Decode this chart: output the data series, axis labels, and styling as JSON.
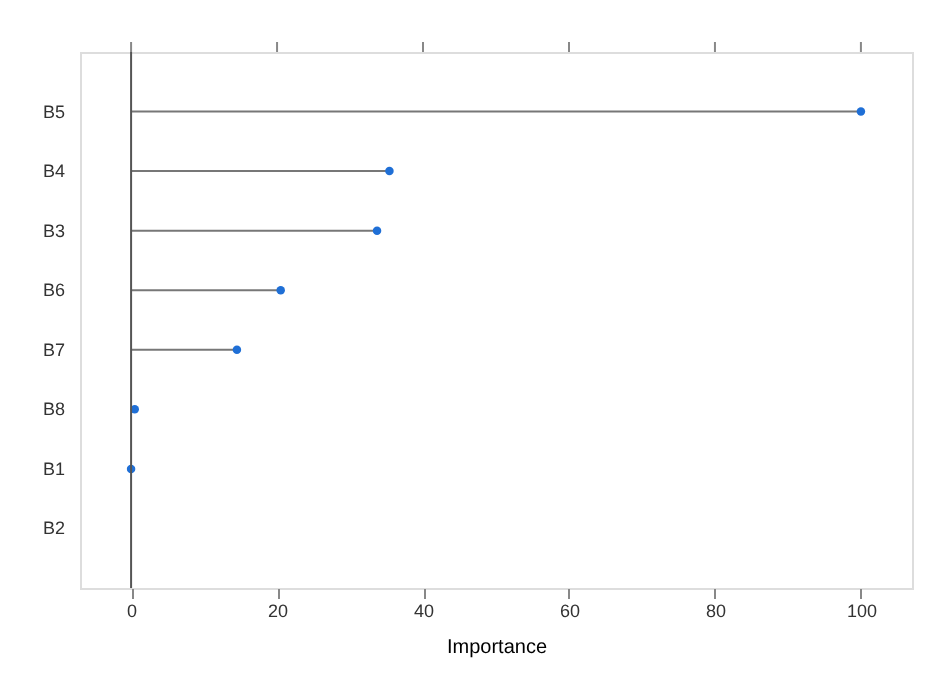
{
  "chart_data": {
    "type": "lollipop",
    "orientation": "horizontal",
    "xlabel": "Importance",
    "categories": [
      "B5",
      "B4",
      "B3",
      "B6",
      "B7",
      "B8",
      "B1",
      "B2"
    ],
    "series": [
      {
        "color": "#1f6fd6",
        "values": [
          100,
          35.4,
          33.7,
          20.5,
          14.5,
          0.5,
          0,
          null
        ]
      }
    ],
    "xlim": [
      -7,
      107
    ],
    "xticks": [
      0,
      20,
      40,
      60,
      80,
      100
    ],
    "ref_lines": [
      {
        "axis": "x",
        "value": 0,
        "color": "#555555"
      }
    ],
    "grid": false,
    "marker": "circle"
  }
}
